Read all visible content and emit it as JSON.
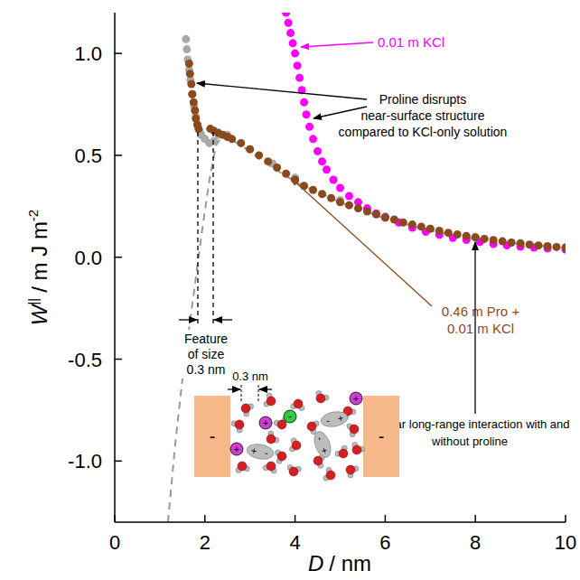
{
  "chart_data": {
    "type": "scatter",
    "xlabel": {
      "symbol": "D",
      "unit": "/ nm"
    },
    "ylabel": {
      "symbol": "W",
      "superscript": "||",
      "unit": "/ m J m",
      "unit_exponent": "-2"
    },
    "xlim": [
      0,
      10
    ],
    "ylim": [
      -1.3,
      1.2
    ],
    "xticks": [
      0,
      2,
      4,
      6,
      8,
      10
    ],
    "yticks": [
      {
        "value": -1.0,
        "label": "-1.0"
      },
      -0.5,
      {
        "value": 0,
        "label": "0.0"
      },
      0.5,
      {
        "value": 1.0,
        "label": "1.0"
      }
    ],
    "series": [
      {
        "color": "#aaaaaa",
        "marker": "circle",
        "x": [
          1.58,
          1.6,
          1.62,
          1.65,
          1.68,
          1.72,
          1.76,
          1.8,
          1.84,
          1.88,
          1.92,
          2.0,
          2.1,
          2.2,
          2.3,
          2.5,
          3.0,
          3.5,
          4.0,
          5.0,
          6.0,
          7.0,
          8.0,
          9.0,
          10.0
        ],
        "values": [
          1.07,
          1.02,
          0.97,
          0.92,
          0.87,
          0.8,
          0.74,
          0.69,
          0.65,
          0.62,
          0.6,
          0.58,
          0.56,
          0.57,
          0.6,
          0.6,
          0.53,
          0.46,
          0.39,
          0.28,
          0.2,
          0.14,
          0.1,
          0.07,
          0.05
        ]
      },
      {
        "type": "line",
        "line_style": "dashed",
        "color": "#999999",
        "x": [
          1.18,
          1.35,
          1.5,
          1.65,
          1.8,
          1.95,
          2.1,
          2.25,
          2.4,
          2.8,
          3.5,
          4.0,
          5.0,
          6.0,
          7.0,
          8.0,
          9.0,
          10.0
        ],
        "values": [
          -1.3,
          -0.9,
          -0.6,
          -0.35,
          -0.1,
          0.15,
          0.38,
          0.55,
          0.6,
          0.55,
          0.44,
          0.37,
          0.27,
          0.19,
          0.13,
          0.09,
          0.065,
          0.045
        ]
      },
      {
        "color": "#ff00ff",
        "marker": "circle",
        "x": [
          3.8,
          3.85,
          3.9,
          3.95,
          4.0,
          4.05,
          4.1,
          4.15,
          4.2,
          4.25,
          4.32,
          4.4,
          4.5,
          4.6,
          4.7,
          4.85,
          5.0,
          5.2,
          5.4,
          5.6,
          5.8,
          6.0,
          6.3,
          6.6,
          6.9,
          7.2,
          7.5,
          7.8,
          8.1,
          8.4,
          8.7,
          9.0,
          9.3,
          9.6,
          10.0
        ],
        "values": [
          1.2,
          1.15,
          1.1,
          1.05,
          1.0,
          0.94,
          0.88,
          0.82,
          0.76,
          0.7,
          0.64,
          0.58,
          0.52,
          0.47,
          0.43,
          0.38,
          0.34,
          0.3,
          0.27,
          0.24,
          0.215,
          0.195,
          0.17,
          0.145,
          0.125,
          0.11,
          0.095,
          0.085,
          0.075,
          0.065,
          0.058,
          0.052,
          0.047,
          0.043,
          0.038
        ]
      },
      {
        "color": "#8b4a1b",
        "marker": "circle",
        "x": [
          1.65,
          1.67,
          1.7,
          1.72,
          1.75,
          1.78,
          1.8,
          1.83,
          1.86,
          2.12,
          2.2,
          2.3,
          2.4,
          2.5,
          2.6,
          2.8,
          3.0,
          3.2,
          3.4,
          3.6,
          3.8,
          4.0,
          4.2,
          4.4,
          4.6,
          4.8,
          5.0,
          5.2,
          5.4,
          5.6,
          5.8,
          6.0,
          6.2,
          6.4,
          6.6,
          6.8,
          7.0,
          7.2,
          7.4,
          7.6,
          7.8,
          8.0,
          8.2,
          8.4,
          8.6,
          8.8,
          9.0,
          9.2,
          9.4,
          9.6,
          9.8,
          10.0
        ],
        "values": [
          0.95,
          0.9,
          0.85,
          0.8,
          0.76,
          0.72,
          0.68,
          0.65,
          0.63,
          0.63,
          0.62,
          0.61,
          0.6,
          0.59,
          0.58,
          0.56,
          0.53,
          0.5,
          0.47,
          0.44,
          0.41,
          0.38,
          0.35,
          0.33,
          0.31,
          0.29,
          0.27,
          0.255,
          0.24,
          0.225,
          0.21,
          0.195,
          0.185,
          0.17,
          0.16,
          0.15,
          0.14,
          0.13,
          0.12,
          0.112,
          0.104,
          0.097,
          0.09,
          0.084,
          0.078,
          0.072,
          0.067,
          0.062,
          0.058,
          0.054,
          0.05,
          0.046
        ]
      }
    ],
    "annotations": [
      {
        "text": [
          "0.01 m KCl"
        ],
        "color": "#ff00ff"
      },
      {
        "text": [
          "Proline disrupts",
          "near-surface structure",
          "compared to KCl-only solution"
        ]
      },
      {
        "text": [
          "Feature",
          "of size",
          "0.3 nm"
        ]
      },
      {
        "text": [
          "0.46 m Pro +",
          "0.01 m KCl"
        ],
        "color": "#8b4a1b"
      },
      {
        "text": [
          "Similar long-range interaction with and",
          "without proline"
        ]
      }
    ],
    "inset": {
      "spacing_label": "0.3 nm",
      "wall_charge": "-",
      "cation_charge": "+",
      "anion_charge": "-",
      "zwitterion_charges": [
        "-",
        "+"
      ]
    }
  }
}
